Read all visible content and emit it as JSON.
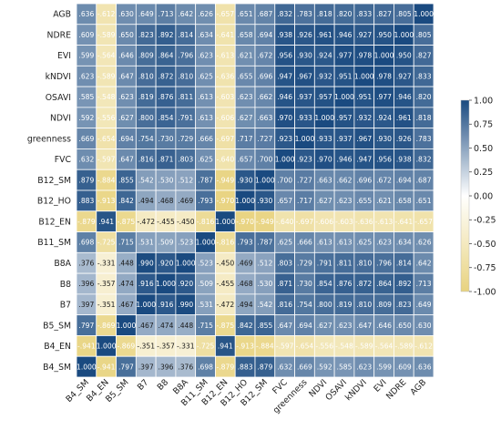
{
  "chart_data": {
    "type": "heatmap",
    "title": "",
    "rows": [
      "AGB",
      "NDRE",
      "EVI",
      "kNDVI",
      "OSAVI",
      "NDVI",
      "greenness",
      "FVC",
      "B12_SM",
      "B12_HO",
      "B12_EN",
      "B11_SM",
      "B8A",
      "B8",
      "B7",
      "B5_SM",
      "B4_EN",
      "B4_SM"
    ],
    "columns": [
      "B4_SM",
      "B4_EN",
      "B5_SM",
      "B7",
      "B8",
      "B8A",
      "B11_SM",
      "B12_EN",
      "B12_HO",
      "B12_SM",
      "FVC",
      "greenness",
      "NDVI",
      "OSAVI",
      "kNDVI",
      "EVI",
      "NDRE",
      "AGB"
    ],
    "values": [
      [
        0.636,
        -0.612,
        0.63,
        0.649,
        0.713,
        0.642,
        0.626,
        -0.657,
        0.651,
        0.687,
        0.832,
        0.783,
        0.818,
        0.82,
        0.833,
        0.827,
        0.805,
        1.0
      ],
      [
        0.609,
        -0.589,
        0.65,
        0.823,
        0.892,
        0.814,
        0.634,
        -0.641,
        0.658,
        0.694,
        0.938,
        0.926,
        0.961,
        0.946,
        0.927,
        0.95,
        1.0,
        0.805
      ],
      [
        0.599,
        -0.564,
        0.646,
        0.809,
        0.864,
        0.796,
        0.623,
        -0.613,
        0.621,
        0.672,
        0.956,
        0.93,
        0.924,
        0.977,
        0.978,
        1.0,
        0.95,
        0.827
      ],
      [
        0.623,
        -0.589,
        0.647,
        0.81,
        0.872,
        0.81,
        0.625,
        -0.636,
        0.655,
        0.696,
        0.947,
        0.967,
        0.932,
        0.951,
        1.0,
        0.978,
        0.927,
        0.833
      ],
      [
        0.585,
        -0.548,
        0.623,
        0.819,
        0.876,
        0.811,
        0.613,
        -0.603,
        0.623,
        0.662,
        0.946,
        0.937,
        0.957,
        1.0,
        0.951,
        0.977,
        0.946,
        0.82
      ],
      [
        0.592,
        -0.556,
        0.627,
        0.8,
        0.854,
        0.791,
        0.613,
        -0.606,
        0.627,
        0.663,
        0.97,
        0.933,
        1.0,
        0.957,
        0.932,
        0.924,
        0.961,
        0.818
      ],
      [
        0.669,
        -0.654,
        0.694,
        0.754,
        0.73,
        0.729,
        0.666,
        -0.697,
        0.717,
        0.727,
        0.923,
        1.0,
        0.933,
        0.937,
        0.967,
        0.93,
        0.926,
        0.783
      ],
      [
        0.632,
        -0.597,
        0.647,
        0.816,
        0.871,
        0.803,
        0.625,
        -0.64,
        0.657,
        0.7,
        1.0,
        0.923,
        0.97,
        0.946,
        0.947,
        0.956,
        0.938,
        0.832
      ],
      [
        0.879,
        -0.884,
        0.855,
        0.542,
        0.53,
        0.512,
        0.787,
        -0.949,
        0.93,
        1.0,
        0.7,
        0.727,
        0.663,
        0.662,
        0.696,
        0.672,
        0.694,
        0.687
      ],
      [
        0.883,
        -0.913,
        0.842,
        0.494,
        0.468,
        0.469,
        0.793,
        -0.97,
        1.0,
        0.93,
        0.657,
        0.717,
        0.627,
        0.623,
        0.655,
        0.621,
        0.658,
        0.651
      ],
      [
        -0.879,
        0.941,
        -0.875,
        -0.472,
        -0.455,
        -0.45,
        -0.816,
        1.0,
        -0.97,
        -0.949,
        -0.64,
        -0.697,
        -0.606,
        -0.603,
        -0.636,
        -0.613,
        -0.641,
        -0.657
      ],
      [
        0.698,
        -0.725,
        0.715,
        0.531,
        0.509,
        0.523,
        1.0,
        -0.816,
        0.793,
        0.787,
        0.625,
        0.666,
        0.613,
        0.613,
        0.625,
        0.623,
        0.634,
        0.626
      ],
      [
        0.376,
        -0.331,
        0.448,
        0.99,
        0.92,
        1.0,
        0.523,
        -0.45,
        0.469,
        0.512,
        0.803,
        0.729,
        0.791,
        0.811,
        0.81,
        0.796,
        0.814,
        0.642
      ],
      [
        0.396,
        -0.357,
        0.474,
        0.916,
        1.0,
        0.92,
        0.509,
        -0.455,
        0.468,
        0.53,
        0.871,
        0.73,
        0.854,
        0.876,
        0.872,
        0.864,
        0.892,
        0.713
      ],
      [
        0.397,
        -0.351,
        0.467,
        1.0,
        0.916,
        0.99,
        0.531,
        -0.472,
        0.494,
        0.542,
        0.816,
        0.754,
        0.8,
        0.819,
        0.81,
        0.809,
        0.823,
        0.649
      ],
      [
        0.797,
        -0.869,
        1.0,
        0.467,
        0.474,
        0.448,
        0.715,
        -0.875,
        0.842,
        0.855,
        0.647,
        0.694,
        0.627,
        0.623,
        0.647,
        0.646,
        0.65,
        0.63
      ],
      [
        -0.941,
        1.0,
        -0.869,
        -0.351,
        -0.357,
        -0.331,
        -0.725,
        0.941,
        -0.913,
        -0.884,
        -0.597,
        -0.654,
        -0.556,
        -0.548,
        -0.589,
        -0.564,
        -0.589,
        -0.612
      ],
      [
        1.0,
        -0.941,
        0.797,
        0.397,
        0.396,
        0.376,
        0.698,
        -0.879,
        0.883,
        0.879,
        0.632,
        0.669,
        0.592,
        0.585,
        0.623,
        0.599,
        0.609,
        0.636
      ]
    ],
    "colorbar": {
      "range": [
        -1.0,
        1.0
      ],
      "ticks": [
        "1.00",
        "0.75",
        "0.50",
        "0.25",
        "0.00",
        "-0.25",
        "-0.50",
        "-0.75",
        "-1.00"
      ],
      "colors": {
        "negative": "#e8d37f",
        "zero": "#ffffff",
        "positive": "#1a4a80"
      }
    }
  }
}
